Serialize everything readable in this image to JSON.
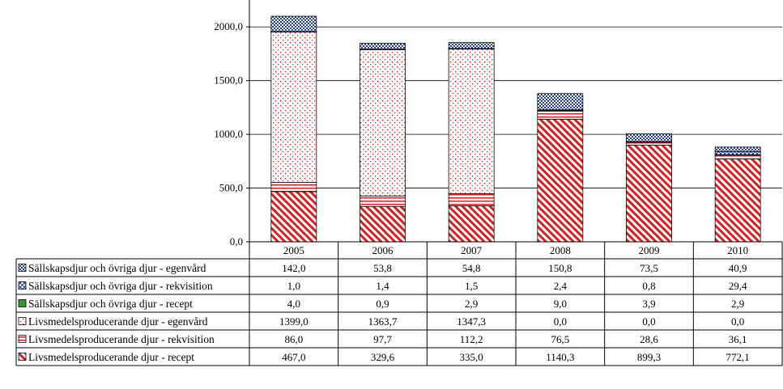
{
  "chart_data": {
    "type": "bar",
    "stacked": true,
    "categories": [
      "2005",
      "2006",
      "2007",
      "2008",
      "2009",
      "2010"
    ],
    "ylim": [
      0,
      2250
    ],
    "yticks": [
      0,
      500,
      1000,
      1500,
      2000
    ],
    "ytick_labels": [
      "0,0",
      "500,0",
      "1000,0",
      "1500,0",
      "2000,0"
    ],
    "grid": true,
    "legend": "data-table-below",
    "series": [
      {
        "name": "Sällskapsdjur och övriga djur - egenvård",
        "color": "#1f3f99",
        "pattern": "dots",
        "values": [
          142.0,
          53.8,
          54.8,
          150.8,
          73.5,
          40.9
        ],
        "labels": [
          "142,0",
          "53,8",
          "54,8",
          "150,8",
          "73,5",
          "40,9"
        ]
      },
      {
        "name": "Sällskapsdjur och övriga djur - rekvisition",
        "color": "#1f3f99",
        "pattern": "crosshatch",
        "values": [
          1.0,
          1.4,
          1.5,
          2.4,
          0.8,
          29.4
        ],
        "labels": [
          "1,0",
          "1,4",
          "1,5",
          "2,4",
          "0,8",
          "29,4"
        ]
      },
      {
        "name": "Sällskapsdjur och övriga djur - recept",
        "color": "#2e9a2e",
        "pattern": "solid",
        "values": [
          4.0,
          0.9,
          2.9,
          9.0,
          3.9,
          2.9
        ],
        "labels": [
          "4,0",
          "0,9",
          "2,9",
          "9,0",
          "3,9",
          "2,9"
        ]
      },
      {
        "name": "Livsmedelsproducerande djur - egenvård",
        "color": "#d42020",
        "pattern": "small-dots",
        "values": [
          1399.0,
          1363.7,
          1347.3,
          0.0,
          0.0,
          0.0
        ],
        "labels": [
          "1399,0",
          "1363,7",
          "1347,3",
          "0,0",
          "0,0",
          "0,0"
        ]
      },
      {
        "name": "Livsmedelsproducerande djur - rekvisition",
        "color": "#d42020",
        "pattern": "horizontal",
        "values": [
          86.0,
          97.7,
          112.2,
          76.5,
          28.6,
          36.1
        ],
        "labels": [
          "86,0",
          "97,7",
          "112,2",
          "76,5",
          "28,6",
          "36,1"
        ]
      },
      {
        "name": "Livsmedelsproducerande djur - recept",
        "color": "#d42020",
        "pattern": "diagonal",
        "values": [
          467.0,
          329.6,
          335.0,
          1140.3,
          899.3,
          772.1
        ],
        "labels": [
          "467,0",
          "329,6",
          "335,0",
          "1140,3",
          "899,3",
          "772,1"
        ]
      }
    ]
  }
}
